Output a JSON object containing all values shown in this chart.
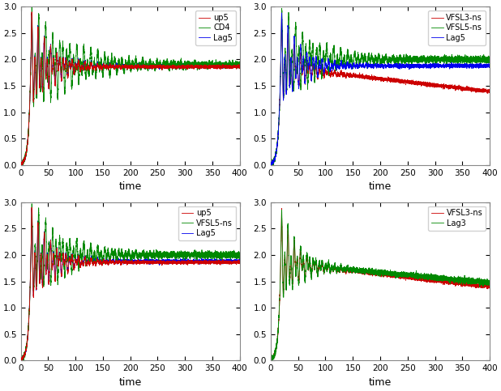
{
  "subplots": [
    {
      "series": [
        {
          "label": "up5",
          "color": "#cc0000",
          "lw": 0.6,
          "zorder": 3
        },
        {
          "label": "CD4",
          "color": "#008800",
          "lw": 0.6,
          "zorder": 2
        },
        {
          "label": "Lag5",
          "color": "#0000ee",
          "lw": 0.6,
          "zorder": 1
        }
      ]
    },
    {
      "series": [
        {
          "label": "VFSL3-ns",
          "color": "#cc0000",
          "lw": 0.6,
          "zorder": 1
        },
        {
          "label": "VFSL5-ns",
          "color": "#008800",
          "lw": 0.6,
          "zorder": 2
        },
        {
          "label": "Lag5",
          "color": "#0000ee",
          "lw": 0.6,
          "zorder": 3
        }
      ]
    },
    {
      "series": [
        {
          "label": "up5",
          "color": "#cc0000",
          "lw": 0.6,
          "zorder": 3
        },
        {
          "label": "VFSL5-ns",
          "color": "#008800",
          "lw": 0.6,
          "zorder": 2
        },
        {
          "label": "Lag5",
          "color": "#0000ee",
          "lw": 0.6,
          "zorder": 1
        }
      ]
    },
    {
      "series": [
        {
          "label": "VFSL3-ns",
          "color": "#cc0000",
          "lw": 0.6,
          "zorder": 1
        },
        {
          "label": "Lag3",
          "color": "#008800",
          "lw": 0.6,
          "zorder": 2
        }
      ]
    }
  ],
  "xlim": [
    0,
    400
  ],
  "ylim": [
    0,
    3
  ],
  "yticks": [
    0,
    0.5,
    1,
    1.5,
    2,
    2.5,
    3
  ],
  "xticks": [
    0,
    50,
    100,
    150,
    200,
    250,
    300,
    350,
    400
  ],
  "xlabel": "time",
  "bg_color": "#ffffff",
  "figsize": [
    6.18,
    4.83
  ],
  "dpi": 100,
  "seed": 42,
  "T": 400,
  "N": 8000,
  "osc_freq": 1.1,
  "osc_freq2": 0.55,
  "peak_time": 20,
  "peak_val": 2.92,
  "grow_rate": 0.25
}
